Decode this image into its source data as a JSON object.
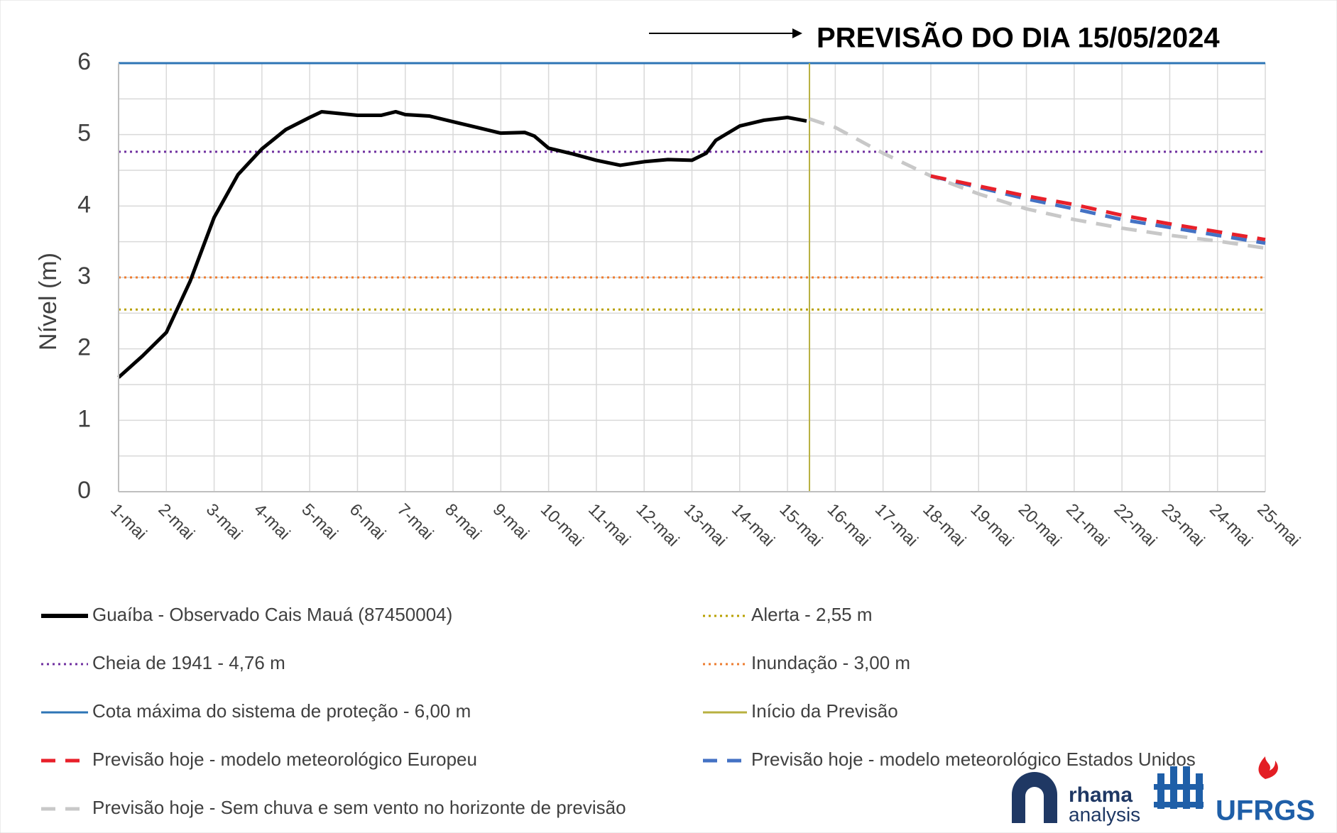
{
  "chart_data": {
    "type": "line",
    "title": "PREVISÃO DO DIA 15/05/2024",
    "y_label": "Nível (m)",
    "xlim": [
      1,
      25
    ],
    "xticks": [
      {
        "value": 1,
        "label": "1-mai"
      },
      {
        "value": 2,
        "label": "2-mai"
      },
      {
        "value": 3,
        "label": "3-mai"
      },
      {
        "value": 4,
        "label": "4-mai"
      },
      {
        "value": 5,
        "label": "5-mai"
      },
      {
        "value": 6,
        "label": "6-mai"
      },
      {
        "value": 7,
        "label": "7-mai"
      },
      {
        "value": 8,
        "label": "8-mai"
      },
      {
        "value": 9,
        "label": "9-mai"
      },
      {
        "value": 10,
        "label": "10-mai"
      },
      {
        "value": 11,
        "label": "11-mai"
      },
      {
        "value": 12,
        "label": "12-mai"
      },
      {
        "value": 13,
        "label": "13-mai"
      },
      {
        "value": 14,
        "label": "14-mai"
      },
      {
        "value": 15,
        "label": "15-mai"
      },
      {
        "value": 16,
        "label": "16-mai"
      },
      {
        "value": 17,
        "label": "17-mai"
      },
      {
        "value": 18,
        "label": "18-mai"
      },
      {
        "value": 19,
        "label": "19-mai"
      },
      {
        "value": 20,
        "label": "20-mai"
      },
      {
        "value": 21,
        "label": "21-mai"
      },
      {
        "value": 22,
        "label": "22-mai"
      },
      {
        "value": 23,
        "label": "23-mai"
      },
      {
        "value": 24,
        "label": "24-mai"
      },
      {
        "value": 25,
        "label": "25-mai"
      }
    ],
    "ylim": [
      0,
      6
    ],
    "yticks": [
      0,
      1,
      2,
      3,
      4,
      5,
      6
    ],
    "minor_ygrid": [
      0.5,
      1.5,
      2.5,
      3.5,
      4.5,
      5.5
    ],
    "grid": true,
    "series": [
      {
        "name": "Guaíba - Observado Cais Mauá (87450004)",
        "color": "#000000",
        "style": "solid",
        "x": [
          1,
          1.5,
          2,
          2.5,
          3,
          3.5,
          4,
          4.5,
          5,
          5.25,
          6,
          6.5,
          6.8,
          7,
          7.5,
          8,
          8.5,
          9,
          9.5,
          9.7,
          10,
          10.5,
          11,
          11.5,
          12,
          12.5,
          13,
          13.3,
          13.5,
          14,
          14.5,
          15,
          15.4
        ],
        "values": [
          1.6,
          1.9,
          2.23,
          2.95,
          3.84,
          4.44,
          4.8,
          5.07,
          5.24,
          5.32,
          5.27,
          5.27,
          5.32,
          5.28,
          5.26,
          5.18,
          5.1,
          5.02,
          5.03,
          4.98,
          4.81,
          4.73,
          4.64,
          4.57,
          4.62,
          4.65,
          4.64,
          4.74,
          4.92,
          5.12,
          5.2,
          5.24,
          5.19
        ]
      },
      {
        "name": "Previsão hoje - modelo meteorológico Europeu",
        "color": "#e8202a",
        "style": "dashed",
        "x": [
          18,
          19,
          20,
          21,
          22,
          23,
          24,
          25
        ],
        "values": [
          4.42,
          4.28,
          4.14,
          4.02,
          3.87,
          3.75,
          3.64,
          3.53
        ]
      },
      {
        "name": "Previsão hoje - modelo meteorológico Estados Unidos",
        "color": "#4472c4",
        "style": "dashed",
        "x": [
          18,
          19,
          20,
          21,
          22,
          23,
          24,
          25
        ],
        "values": [
          4.42,
          4.26,
          4.1,
          3.96,
          3.81,
          3.7,
          3.59,
          3.48
        ]
      },
      {
        "name": "Previsão hoje - Sem chuva e sem vento no horizonte de previsão",
        "color": "#c8c8c8",
        "style": "dashed",
        "x": [
          15.46,
          16,
          17,
          18,
          19,
          20,
          21,
          22,
          23,
          24,
          25
        ],
        "values": [
          5.22,
          5.1,
          4.74,
          4.42,
          4.17,
          3.96,
          3.81,
          3.69,
          3.59,
          3.51,
          3.41
        ]
      }
    ],
    "hlines": [
      {
        "name": "Alerta  - 2,55 m",
        "value": 2.55,
        "color": "#b8a100",
        "style": "dotted"
      },
      {
        "name": "Cheia de 1941 - 4,76 m",
        "value": 4.76,
        "color": "#7030a0",
        "style": "dotted"
      },
      {
        "name": "Inundação - 3,00 m",
        "value": 3.0,
        "color": "#ed7d31",
        "style": "dotted"
      },
      {
        "name": "Cota máxima do sistema de proteção - 6,00 m",
        "value": 6.0,
        "color": "#2e75b6",
        "style": "solid"
      }
    ],
    "vline": {
      "name": "Início da Previsão",
      "value": 15.46,
      "color": "#b8b040",
      "style": "solid"
    },
    "logos": [
      "rhama",
      "analysis",
      "UFRGS"
    ]
  }
}
